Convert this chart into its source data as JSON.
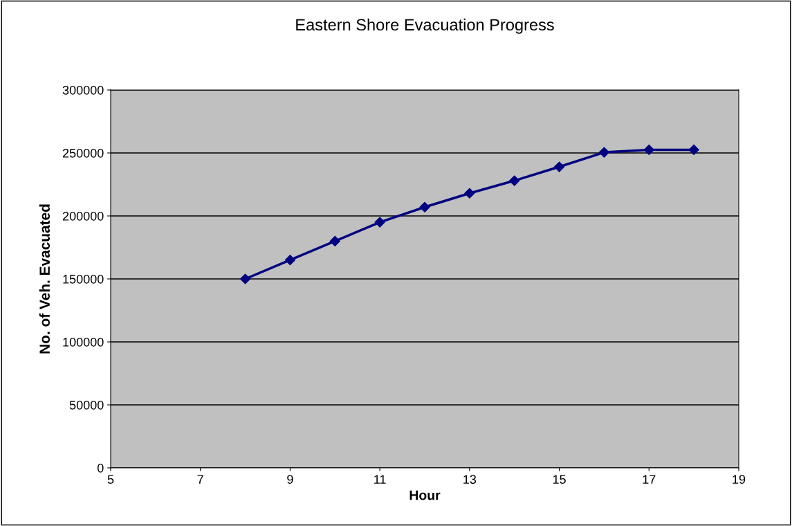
{
  "chart_data": {
    "type": "line",
    "title": "Eastern Shore Evacuation Progress",
    "xlabel": "Hour",
    "ylabel": "No. of Veh. Evacuated",
    "x": [
      8,
      9,
      10,
      11,
      12,
      13,
      14,
      15,
      16,
      17,
      18
    ],
    "series": [
      {
        "color": "#000080",
        "values": [
          150000,
          165000,
          180000,
          195000,
          207000,
          218000,
          228000,
          239000,
          250500,
          252500,
          252500
        ]
      }
    ],
    "xlim": [
      5,
      19
    ],
    "xticks": [
      5,
      7,
      9,
      11,
      13,
      15,
      17,
      19
    ],
    "ylim": [
      0,
      300000
    ],
    "yticks": [
      0,
      50000,
      100000,
      150000,
      200000,
      250000,
      300000
    ],
    "grid": "y",
    "marker": "diamond",
    "line_style": "solid",
    "legend": false
  }
}
